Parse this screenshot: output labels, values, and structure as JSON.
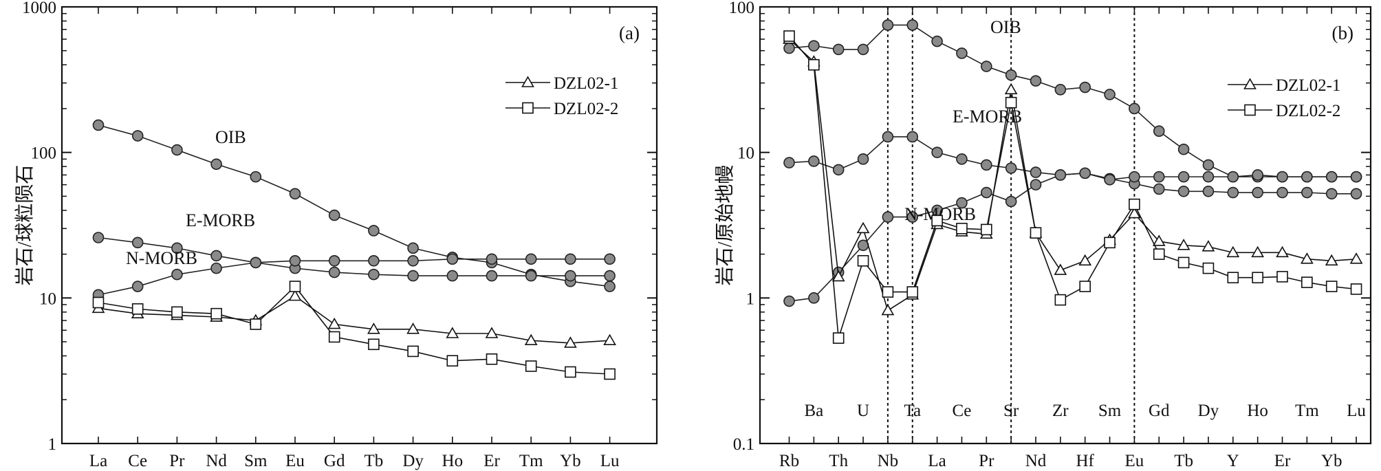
{
  "chart_data": [
    {
      "type": "line",
      "panel_label": "(a)",
      "ylabel": "岩石/球粒陨石",
      "yscale": "log",
      "ylim": [
        1,
        1000
      ],
      "yticks": [
        "1",
        "10",
        "100",
        "1000"
      ],
      "categories": [
        "La",
        "Ce",
        "Pr",
        "Nd",
        "Sm",
        "Eu",
        "Gd",
        "Tb",
        "Dy",
        "Ho",
        "Er",
        "Tm",
        "Yb",
        "Lu"
      ],
      "grid": false,
      "legend_position": "top-right",
      "reference_curves": [
        {
          "label": "OIB",
          "values": [
            154,
            130,
            104,
            83,
            68,
            52,
            37,
            29,
            22,
            19,
            17.5,
            14.5,
            13,
            12
          ]
        },
        {
          "label": "E-MORB",
          "values": [
            26,
            24,
            22,
            19.5,
            17.5,
            16,
            15,
            14.5,
            14.2,
            14.2,
            14.2,
            14.2,
            14.2,
            14.2
          ]
        },
        {
          "label": "N-MORB",
          "values": [
            10.5,
            12,
            14.5,
            16,
            17.5,
            18,
            18,
            18,
            18,
            18.5,
            18.5,
            18.5,
            18.5,
            18.5
          ]
        }
      ],
      "series": [
        {
          "name": "DZL02-1",
          "marker": "triangle",
          "values": [
            8.5,
            7.8,
            7.6,
            7.4,
            7.0,
            10.3,
            6.6,
            6.1,
            6.1,
            5.7,
            5.7,
            5.1,
            4.9,
            5.1
          ]
        },
        {
          "name": "DZL02-2",
          "marker": "square",
          "values": [
            9.3,
            8.4,
            8.0,
            7.8,
            6.6,
            12.0,
            5.4,
            4.8,
            4.3,
            3.7,
            3.8,
            3.4,
            3.1,
            3.0
          ]
        }
      ]
    },
    {
      "type": "line",
      "panel_label": "(b)",
      "ylabel": "岩石/原始地幔",
      "yscale": "log",
      "ylim": [
        0.1,
        100
      ],
      "yticks": [
        "0.1",
        "1",
        "10",
        "100"
      ],
      "categories": [
        "Rb",
        "Ba",
        "Th",
        "U",
        "Nb",
        "Ta",
        "La",
        "Ce",
        "Pr",
        "Sr",
        "Nd",
        "Zr",
        "Hf",
        "Sm",
        "Eu",
        "Gd",
        "Tb",
        "Dy",
        "Y",
        "Ho",
        "Er",
        "Tm",
        "Yb",
        "Lu"
      ],
      "dashed_reference_lines_at": [
        "Nb",
        "Ta",
        "Sr",
        "Eu"
      ],
      "grid": false,
      "legend_position": "top-right",
      "reference_curves": [
        {
          "label": "OIB",
          "values": [
            52,
            54,
            51,
            51,
            75,
            75,
            58,
            48,
            39,
            34,
            31,
            27,
            28,
            25,
            20,
            14,
            10.5,
            8.2,
            6.8,
            6.8,
            6.8,
            6.8,
            6.8,
            6.8
          ]
        },
        {
          "label": "E-MORB",
          "values": [
            8.5,
            8.7,
            7.6,
            9.0,
            12.8,
            12.8,
            10.0,
            9.0,
            8.2,
            7.8,
            7.3,
            7.0,
            7.2,
            6.6,
            6.1,
            5.6,
            5.4,
            5.4,
            5.3,
            5.3,
            5.3,
            5.3,
            5.2,
            5.2
          ]
        },
        {
          "label": "N-MORB",
          "values": [
            0.95,
            1.0,
            1.5,
            2.3,
            3.6,
            3.6,
            4.0,
            4.5,
            5.3,
            4.6,
            6.0,
            7.0,
            7.2,
            6.5,
            6.8,
            6.8,
            6.8,
            6.8,
            6.8,
            7.0,
            6.8,
            6.8,
            6.8,
            6.8
          ]
        }
      ],
      "series": [
        {
          "name": "DZL02-1",
          "marker": "triangle",
          "values": [
            60,
            42,
            1.4,
            3.0,
            0.82,
            1.05,
            3.2,
            2.85,
            2.75,
            27,
            2.8,
            1.55,
            1.8,
            2.5,
            3.8,
            2.45,
            2.3,
            2.25,
            2.05,
            2.05,
            2.05,
            1.85,
            1.8,
            1.85
          ]
        },
        {
          "name": "DZL02-2",
          "marker": "square",
          "values": [
            63,
            40,
            0.53,
            1.8,
            1.1,
            1.1,
            3.4,
            3.0,
            2.95,
            22,
            2.8,
            0.97,
            1.2,
            2.4,
            4.4,
            2.0,
            1.75,
            1.6,
            1.38,
            1.38,
            1.4,
            1.28,
            1.2,
            1.15
          ]
        }
      ]
    }
  ]
}
